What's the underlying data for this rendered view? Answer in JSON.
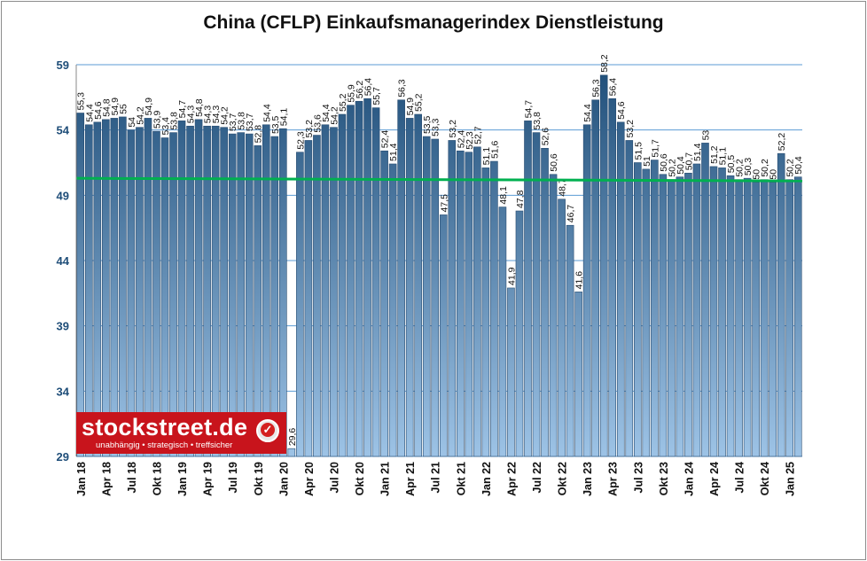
{
  "chart_data": {
    "type": "bar",
    "title": "China (CFLP) Einkaufsmanagerindex Dienstleistung",
    "xlabel": "",
    "ylabel": "",
    "ylim": [
      29,
      59
    ],
    "yticks": [
      29,
      34,
      39,
      44,
      49,
      54,
      59
    ],
    "grid": true,
    "legend": "none",
    "xtick_labels": [
      "Jan 18",
      "Apr 18",
      "Jul 18",
      "Okt 18",
      "Jan 19",
      "Apr 19",
      "Jul 19",
      "Okt 19",
      "Jan 20",
      "Apr 20",
      "Jul 20",
      "Okt 20",
      "Jan 21",
      "Apr 21",
      "Jul 21",
      "Okt 21",
      "Jan 22",
      "Apr 22",
      "Jul 22",
      "Okt 22",
      "Jan 23",
      "Apr 23",
      "Jul 23",
      "Okt 23",
      "Jan 24",
      "Apr 24",
      "Jul 24",
      "Okt 24",
      "Jan 25"
    ],
    "values": [
      55.3,
      54.4,
      54.6,
      54.8,
      54.9,
      55,
      54,
      54.2,
      54.9,
      53.9,
      53.4,
      53.8,
      54.7,
      54.3,
      54.8,
      54.3,
      54.3,
      54.2,
      53.7,
      53.8,
      53.7,
      52.8,
      54.4,
      53.5,
      54.1,
      29.6,
      52.3,
      53.2,
      53.6,
      54.4,
      54.2,
      55.2,
      55.9,
      56.2,
      56.4,
      55.7,
      52.4,
      51.4,
      56.3,
      54.9,
      55.2,
      53.5,
      53.3,
      47.5,
      53.2,
      52.4,
      52.3,
      52.7,
      51.1,
      51.6,
      48.1,
      41.9,
      47.8,
      54.7,
      53.8,
      52.6,
      50.6,
      48.7,
      46.7,
      41.6,
      54.4,
      56.3,
      58.2,
      56.4,
      54.6,
      53.2,
      51.5,
      51,
      51.7,
      50.6,
      50.2,
      50.4,
      50.7,
      51.4,
      53,
      51.2,
      51.1,
      50.5,
      50.2,
      50.3,
      50,
      50.2,
      50,
      52.2,
      50.2,
      50.4
    ],
    "trendline": {
      "start": 50.3,
      "end": 50.1,
      "color": "#00b050"
    },
    "colors": {
      "bar_top": "#1f4e79",
      "bar_bottom": "#9dc3e6",
      "grid": "#5b9bd5",
      "axis_text": "#1f4e79"
    }
  },
  "logo": {
    "name": "stockstreet.de",
    "tagline": "unabhängig • strategisch • treffsicher",
    "color": "#c8141c"
  }
}
